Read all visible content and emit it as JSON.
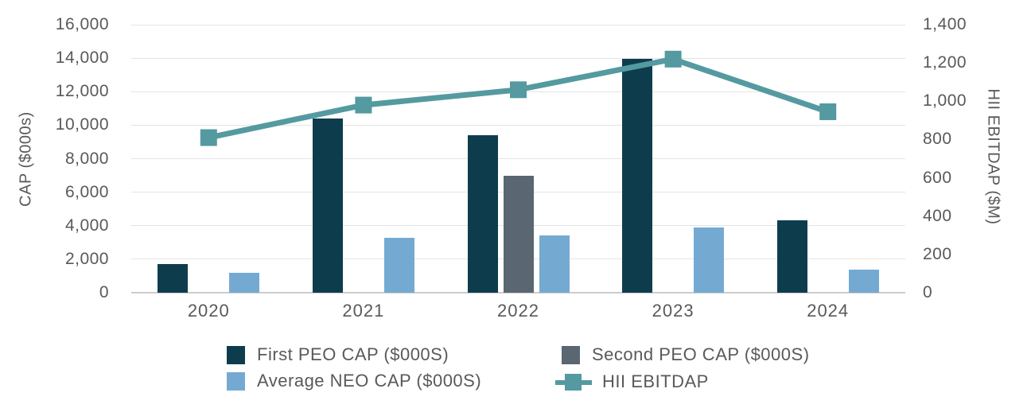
{
  "chart_data": {
    "type": "combo-bar-line",
    "categories": [
      "2020",
      "2021",
      "2022",
      "2023",
      "2024"
    ],
    "bar_series": [
      {
        "name": "First PEO CAP ($000S)",
        "color": "#0d3d4d",
        "axis": "left",
        "values": [
          1700,
          10400,
          9400,
          13950,
          4300
        ]
      },
      {
        "name": "Second PEO CAP ($000S)",
        "color": "#5a6671",
        "axis": "left",
        "values": [
          null,
          null,
          7000,
          null,
          null
        ]
      },
      {
        "name": "Average NEO CAP ($000S)",
        "color": "#74aad2",
        "axis": "left",
        "values": [
          1200,
          3300,
          3400,
          3900,
          1400
        ]
      }
    ],
    "line_series": [
      {
        "name": "HII EBITDAP",
        "color": "#549aa0",
        "axis": "right",
        "marker": "square",
        "values": [
          810,
          980,
          1060,
          1220,
          945
        ]
      }
    ],
    "left_axis": {
      "label": "CAP ($000s)",
      "min": 0,
      "max": 16000,
      "step": 2000,
      "tick_labels": [
        "0",
        "2,000",
        "4,000",
        "6,000",
        "8,000",
        "10,000",
        "12,000",
        "14,000",
        "16,000"
      ]
    },
    "right_axis": {
      "label": "HII EBITDAP ($M)",
      "min": 0,
      "max": 1400,
      "step": 200,
      "tick_labels": [
        "0",
        "200",
        "400",
        "600",
        "800",
        "1,000",
        "1,200",
        "1,400"
      ]
    },
    "grid": "horizontal",
    "legend_position": "bottom",
    "background_color": "#ffffff",
    "text_color": "#595959"
  }
}
